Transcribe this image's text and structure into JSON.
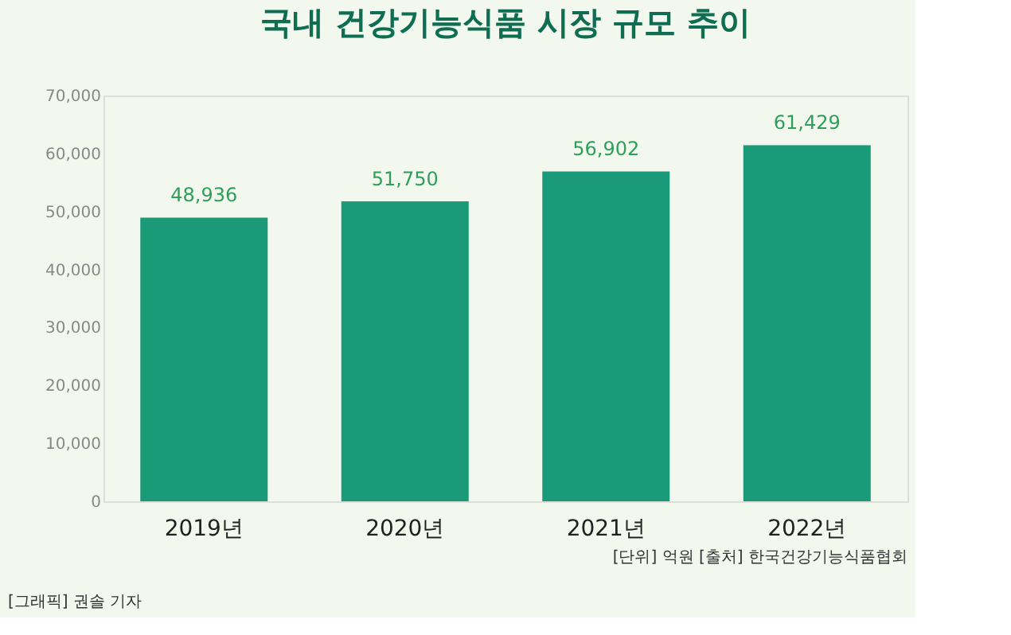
{
  "chart_data": {
    "type": "bar",
    "title": "국내 건강기능식품 시장 규모 추이",
    "categories": [
      "2019년",
      "2020년",
      "2021년",
      "2022년"
    ],
    "values": [
      48936,
      51750,
      56902,
      61429
    ],
    "color": "#1a9a78",
    "value_labels": [
      "48,936",
      "51,750",
      "56,902",
      "61,429"
    ],
    "ylim": [
      0,
      70000
    ],
    "yticks": [
      {
        "value": 0,
        "label": "0"
      },
      {
        "value": 10000,
        "label": "10,000"
      },
      {
        "value": 20000,
        "label": "20,000"
      },
      {
        "value": 30000,
        "label": "30,000"
      },
      {
        "value": 40000,
        "label": "40,000"
      },
      {
        "value": 50000,
        "label": "50,000"
      },
      {
        "value": 60000,
        "label": "60,000"
      },
      {
        "value": 70000,
        "label": "70,000"
      }
    ],
    "grid": false,
    "annotations": [
      "[단위] 억원   [출처] 한국건강기능식품협회",
      "[그래픽] 권솔 기자"
    ]
  }
}
